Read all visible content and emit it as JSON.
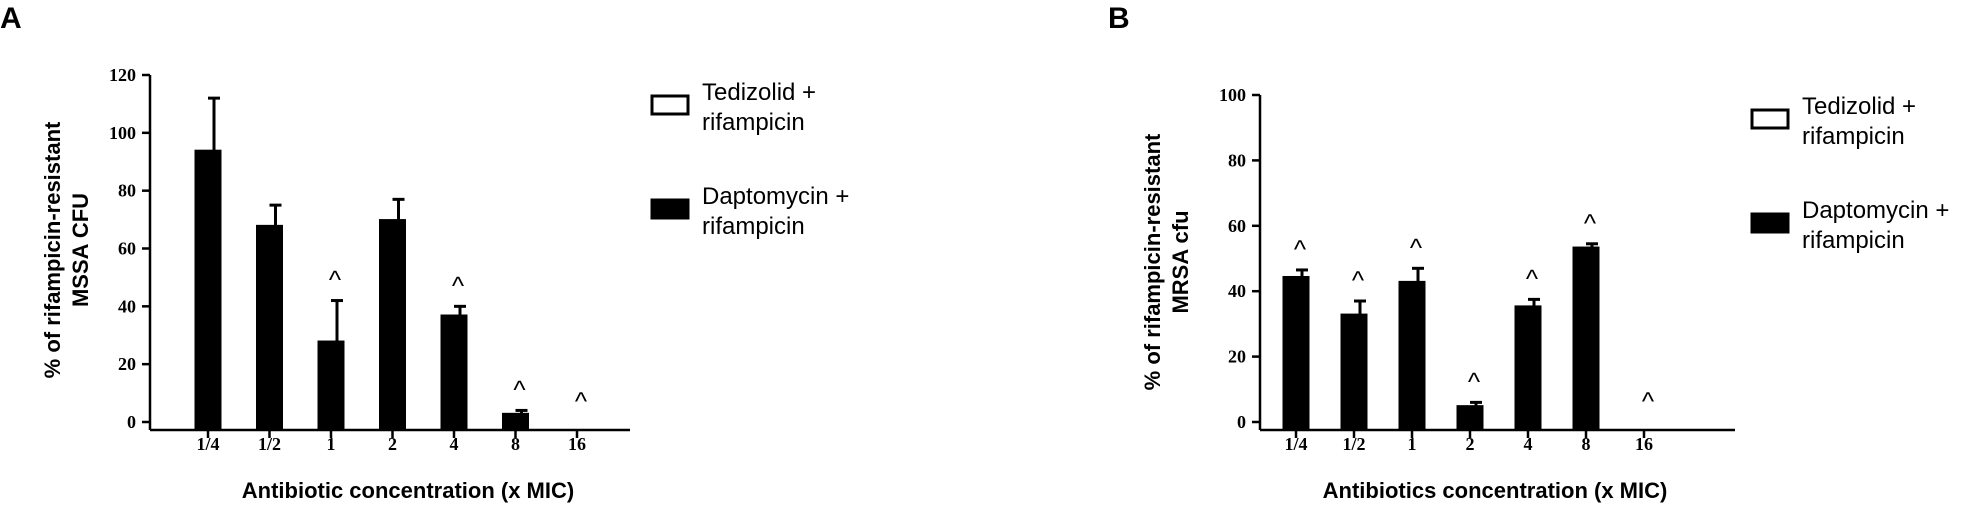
{
  "chart_data": [
    {
      "panel": "A",
      "type": "bar",
      "categories": [
        "1/4",
        "1/2",
        "1",
        "2",
        "4",
        "8",
        "16"
      ],
      "series": [
        {
          "name": "Tedizolid + rifampicin",
          "fill": "#ffffff",
          "values": [
            0,
            0,
            0,
            0,
            0,
            0,
            0
          ],
          "errors": [
            0,
            0,
            0,
            0,
            0,
            0,
            0
          ]
        },
        {
          "name": "Daptomycin + rifampicin",
          "fill": "#000000",
          "values": [
            94,
            68,
            28,
            70,
            37,
            3,
            0
          ],
          "errors": [
            18,
            7,
            14,
            7,
            3,
            1,
            0
          ]
        }
      ],
      "markers": [
        "",
        "",
        "^",
        "",
        "^",
        "^",
        "^"
      ],
      "xlabel": "Antibiotic concentration (x MIC)",
      "ylabel_lines": [
        "% of rifampicin-resistant",
        "MSSA CFU"
      ],
      "ylim": [
        0,
        120
      ],
      "yticks": [
        0,
        20,
        40,
        60,
        80,
        100,
        120
      ],
      "legend_labels": [
        [
          "Tedizolid +",
          "rifampicin"
        ],
        [
          "Daptomycin +",
          "rifampicin"
        ]
      ],
      "grid": false,
      "legend_position": "right"
    },
    {
      "panel": "B",
      "type": "bar",
      "categories": [
        "1/4",
        "1/2",
        "1",
        "2",
        "4",
        "8",
        "16"
      ],
      "series": [
        {
          "name": "Tedizolid + rifampicin",
          "fill": "#ffffff",
          "values": [
            0,
            0,
            0,
            0,
            0,
            0,
            0
          ],
          "errors": [
            0,
            0,
            0,
            0,
            0,
            0,
            0
          ]
        },
        {
          "name": "Daptomycin + rifampicin",
          "fill": "#000000",
          "values": [
            44.5,
            33,
            43,
            5,
            35.5,
            53.5,
            0
          ],
          "errors": [
            2,
            4,
            4,
            1,
            2,
            1,
            0
          ]
        }
      ],
      "markers": [
        "^",
        "^",
        "^",
        "^",
        "^",
        "^",
        "^"
      ],
      "xlabel": "Antibiotics concentration (x MIC)",
      "ylabel_lines": [
        "% of rifampicin-resistant",
        "MRSA cfu"
      ],
      "ylim": [
        0,
        100
      ],
      "yticks": [
        0,
        20,
        40,
        60,
        80,
        100
      ],
      "legend_labels": [
        [
          "Tedizolid +",
          "rifampicin"
        ],
        [
          "Daptomycin +",
          "rifampicin"
        ]
      ],
      "grid": false,
      "legend_position": "right"
    }
  ]
}
